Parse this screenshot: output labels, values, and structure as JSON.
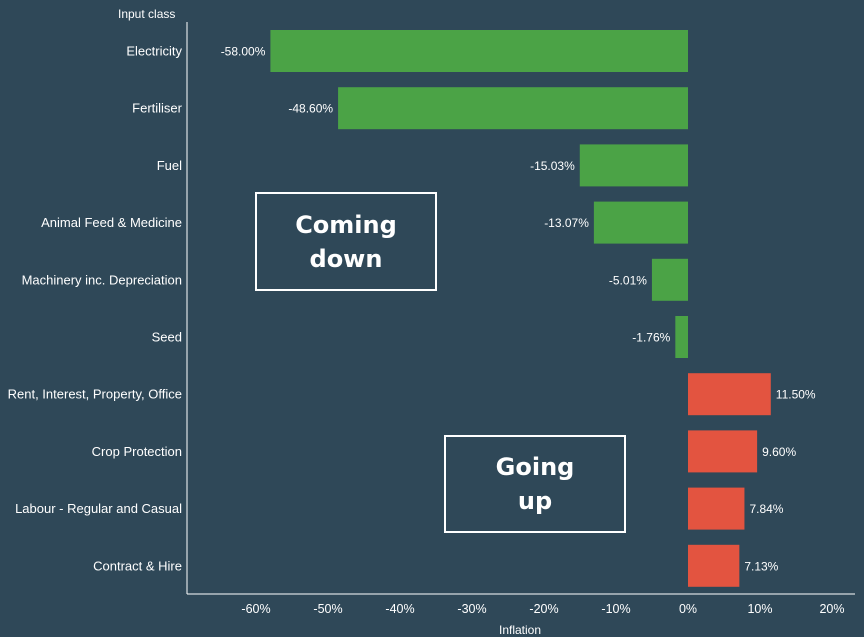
{
  "chart_data": {
    "type": "bar",
    "orientation": "horizontal",
    "ylabel": "Input class",
    "xlabel": "Inflation",
    "categories": [
      "Electricity",
      "Fertiliser",
      "Fuel",
      "Animal Feed & Medicine",
      "Machinery inc. Depreciation",
      "Seed",
      "Rent, Interest, Property, Office",
      "Crop Protection",
      "Labour - Regular and Casual",
      "Contract & Hire"
    ],
    "values": [
      -58.0,
      -48.6,
      -15.03,
      -13.07,
      -5.01,
      -1.76,
      11.5,
      9.6,
      7.84,
      7.13
    ],
    "value_labels": [
      "-58.00%",
      "-48.60%",
      "-15.03%",
      "-13.07%",
      "-5.01%",
      "-1.76%",
      "11.50%",
      "9.60%",
      "7.84%",
      "7.13%"
    ],
    "xlim": [
      -70,
      22
    ],
    "xticks": [
      -60,
      -50,
      -40,
      -30,
      -20,
      -10,
      0,
      10,
      20
    ],
    "xtick_labels": [
      "-60%",
      "-50%",
      "-40%",
      "-30%",
      "-20%",
      "-10%",
      "0%",
      "10%",
      "20%"
    ],
    "colors": {
      "negative": "#4ba346",
      "positive": "#e35440",
      "background": "#2f4858"
    },
    "grid": false
  },
  "callouts": {
    "down": "Coming\ndown",
    "up": "Going\nup"
  }
}
